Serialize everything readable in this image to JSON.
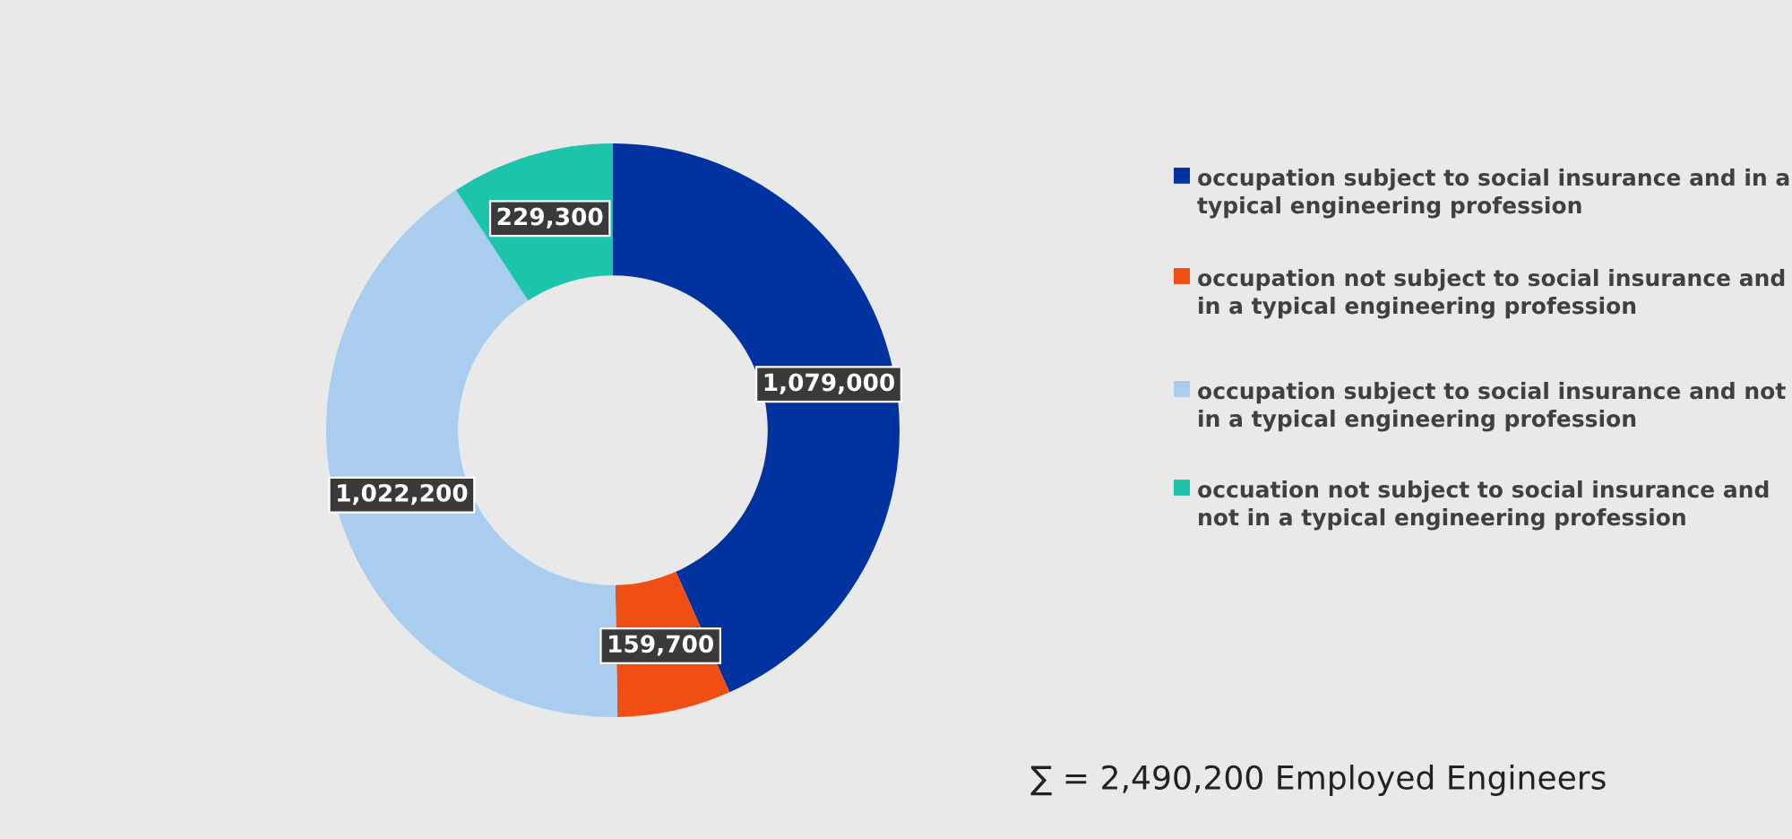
{
  "chart_data": {
    "type": "donut",
    "categories": [
      "occupation subject to social insurance and in a typical engineering profession",
      "occupation not subject to social insurance and in a typical engineering profession",
      "occupation subject to social insurance and not in a typical engineering profession",
      "occuation not subject to social insurance and not in a typical engineering profession"
    ],
    "values": [
      1079000,
      159700,
      1022200,
      229300
    ],
    "colors": [
      "#0033a0",
      "#f04e12",
      "#a9cdee",
      "#1cc4ac"
    ],
    "value_labels": [
      "1,079,000",
      "159,700",
      "1,022,200",
      "229,300"
    ],
    "legend": "right",
    "annotations": [
      "∑ = 2,490,200 Employed Engineers"
    ]
  }
}
